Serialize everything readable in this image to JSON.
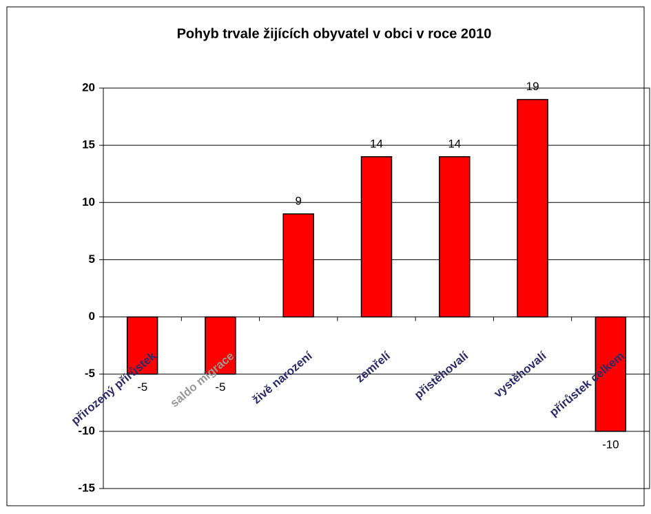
{
  "chart_data": {
    "type": "bar",
    "title": "Pohyb trvale žijících obyvatel v obci v roce 2010",
    "categories": [
      "přirozený přírůstek",
      "saldo migrace",
      "živě narození",
      "zemřelí",
      "přistěhovalí",
      "vystěhovalí",
      "přírůstek celkem"
    ],
    "values": [
      -5,
      -5,
      9,
      14,
      14,
      19,
      -10
    ],
    "color": "#ff0000",
    "ylim": [
      -15,
      20
    ],
    "yticks": [
      -15,
      -10,
      -5,
      0,
      5,
      10,
      15,
      20
    ],
    "grid": true
  }
}
